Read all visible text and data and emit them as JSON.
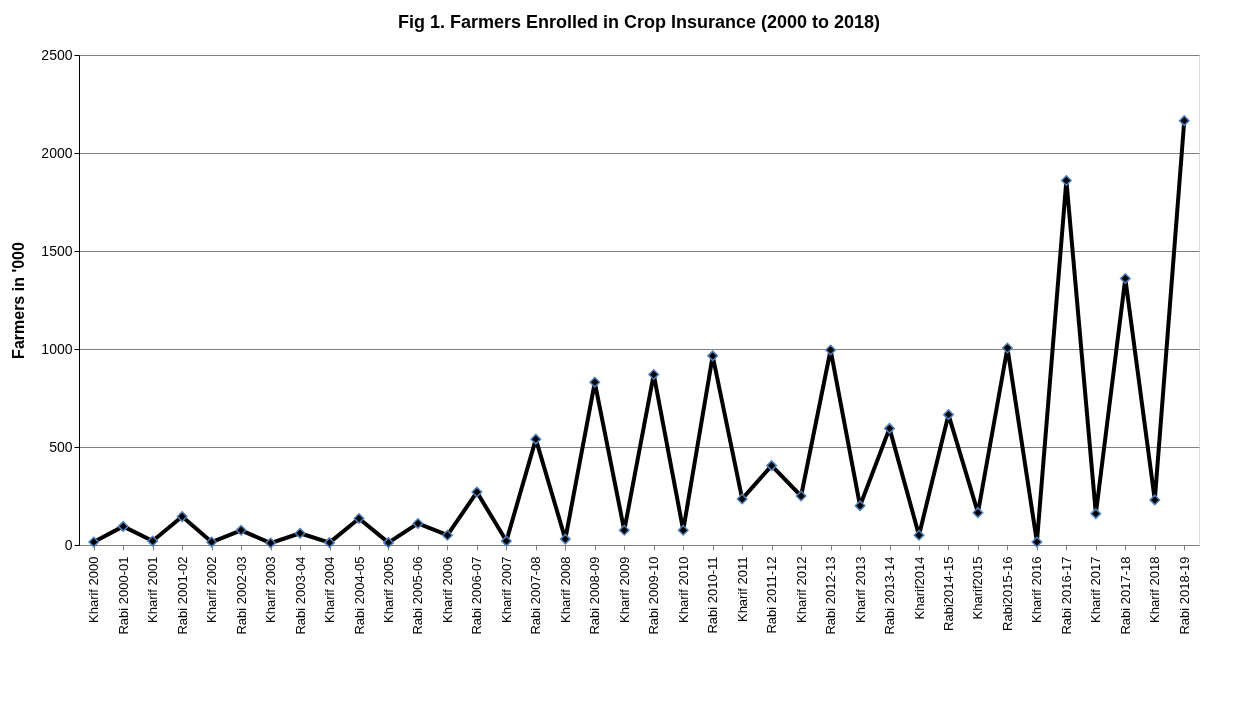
{
  "chart_data": {
    "type": "line",
    "title": "Fig 1. Farmers Enrolled in Crop Insurance (2000 to 2018)",
    "ylabel": "Farmers in '000",
    "categories": [
      "Kharif 2000",
      "Rabi 2000-01",
      "Kharif 2001",
      "Rabi 2001-02",
      "Kharif 2002",
      "Rabi 2002-03",
      "Kharif 2003",
      "Rabi 2003-04",
      "Kharif 2004",
      "Rabi 2004-05",
      "Kharif 2005",
      "Rabi 2005-06",
      "Kharif 2006",
      "Rabi 2006-07",
      "Kharif 2007",
      "Rabi 2007-08",
      "Kharif 2008",
      "Rabi 2008-09",
      "Kharif 2009",
      "Rabi 2009-10",
      "Kharif 2010",
      "Rabi 2010-11",
      "Kharif 2011",
      "Rabi 2011-12",
      "Kharif 2012",
      "Rabi 2012-13",
      "Kharif 2013",
      "Rabi 2013-14",
      "Kharif2014",
      "Rabi2014-15",
      "Kharif2015",
      "Rabi2015-16",
      "Kharif 2016",
      "Rabi 2016-17",
      "Kharif 2017",
      "Rabi 2017-18",
      "Kharif 2018",
      "Rabi 2018-19"
    ],
    "series": [
      {
        "color": "#000000",
        "values": [
          15,
          95,
          20,
          145,
          15,
          75,
          10,
          60,
          12,
          135,
          12,
          110,
          50,
          270,
          20,
          540,
          30,
          830,
          75,
          870,
          75,
          965,
          235,
          405,
          250,
          995,
          200,
          595,
          50,
          665,
          165,
          1005,
          15,
          1860,
          160,
          1360,
          230,
          2165
        ]
      }
    ],
    "ylim": [
      0,
      2500
    ],
    "yticks": [
      0,
      500,
      1000,
      1500,
      2000,
      2500
    ],
    "grid": "y",
    "marker": "diamond",
    "line_style": "solid"
  }
}
